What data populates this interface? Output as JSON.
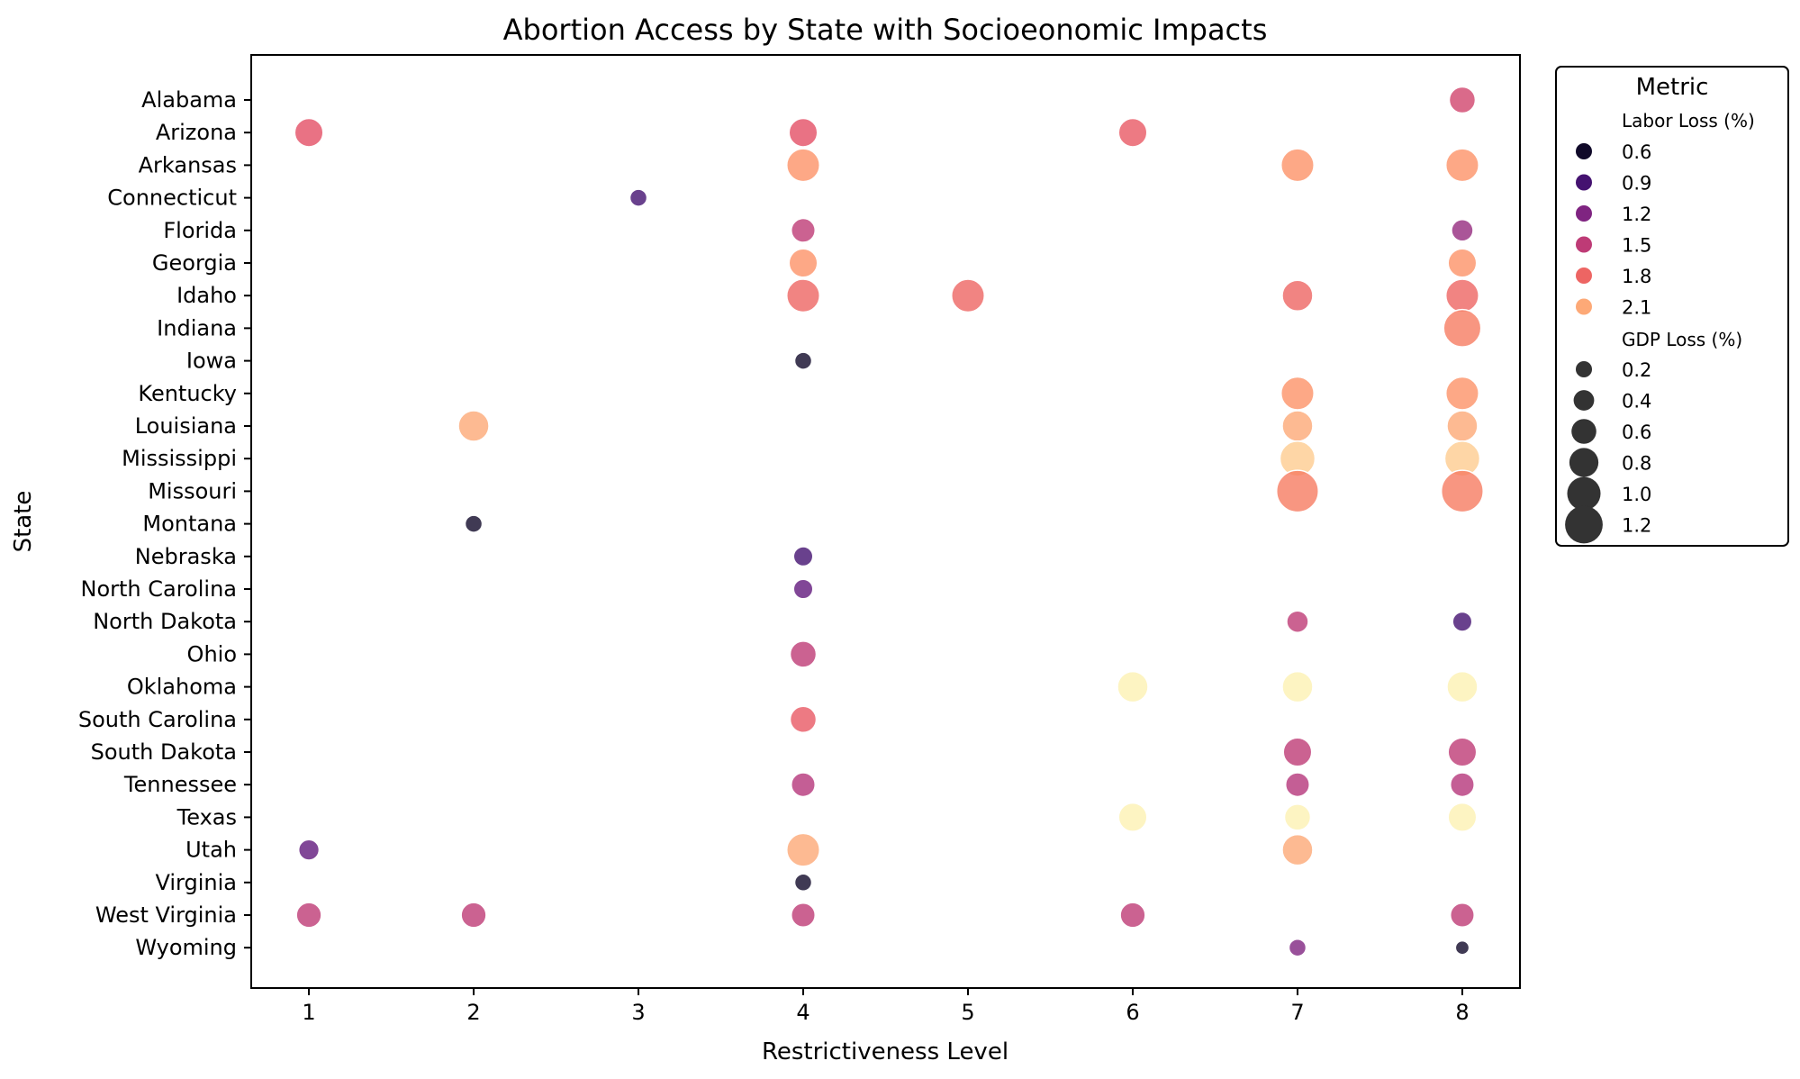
{
  "chart_data": {
    "type": "scatter",
    "title": "Abortion Access by State with Socioeonomic Impacts",
    "xlabel": "Restrictiveness Level",
    "ylabel": "State",
    "x_ticks": [
      1,
      2,
      3,
      4,
      5,
      6,
      7,
      8
    ],
    "xlim": [
      0.65,
      8.35
    ],
    "states": [
      "Alabama",
      "Arizona",
      "Arkansas",
      "Connecticut",
      "Florida",
      "Georgia",
      "Idaho",
      "Indiana",
      "Iowa",
      "Kentucky",
      "Louisiana",
      "Mississippi",
      "Missouri",
      "Montana",
      "Nebraska",
      "North Carolina",
      "North Dakota",
      "Ohio",
      "Oklahoma",
      "South Carolina",
      "South Dakota",
      "Tennessee",
      "Texas",
      "Utah",
      "Virginia",
      "West Virginia",
      "Wyoming"
    ],
    "color_metric": "Labor Loss (%)",
    "size_metric": "GDP Loss (%)",
    "points": [
      {
        "state": "Alabama",
        "x": 8,
        "labor": 1.6,
        "gdp": 0.6
      },
      {
        "state": "Arizona",
        "x": 1,
        "labor": 1.7,
        "gdp": 0.7
      },
      {
        "state": "Arizona",
        "x": 4,
        "labor": 1.7,
        "gdp": 0.7
      },
      {
        "state": "Arizona",
        "x": 6,
        "labor": 1.75,
        "gdp": 0.7
      },
      {
        "state": "Arkansas",
        "x": 4,
        "labor": 2.0,
        "gdp": 0.9
      },
      {
        "state": "Arkansas",
        "x": 7,
        "labor": 2.0,
        "gdp": 0.9
      },
      {
        "state": "Arkansas",
        "x": 8,
        "labor": 2.0,
        "gdp": 0.9
      },
      {
        "state": "Connecticut",
        "x": 3,
        "labor": 0.9,
        "gdp": 0.2
      },
      {
        "state": "Florida",
        "x": 4,
        "labor": 1.5,
        "gdp": 0.5
      },
      {
        "state": "Florida",
        "x": 8,
        "labor": 1.3,
        "gdp": 0.4
      },
      {
        "state": "Georgia",
        "x": 4,
        "labor": 2.0,
        "gdp": 0.7
      },
      {
        "state": "Georgia",
        "x": 8,
        "labor": 2.0,
        "gdp": 0.7
      },
      {
        "state": "Idaho",
        "x": 4,
        "labor": 1.8,
        "gdp": 0.9
      },
      {
        "state": "Idaho",
        "x": 5,
        "labor": 1.8,
        "gdp": 0.9
      },
      {
        "state": "Idaho",
        "x": 7,
        "labor": 1.8,
        "gdp": 0.8
      },
      {
        "state": "Idaho",
        "x": 8,
        "labor": 1.8,
        "gdp": 0.9
      },
      {
        "state": "Indiana",
        "x": 8,
        "labor": 1.9,
        "gdp": 1.1
      },
      {
        "state": "Iowa",
        "x": 4,
        "labor": 0.6,
        "gdp": 0.2
      },
      {
        "state": "Kentucky",
        "x": 7,
        "labor": 2.0,
        "gdp": 0.9
      },
      {
        "state": "Kentucky",
        "x": 8,
        "labor": 2.0,
        "gdp": 0.9
      },
      {
        "state": "Louisiana",
        "x": 2,
        "labor": 2.1,
        "gdp": 0.8
      },
      {
        "state": "Louisiana",
        "x": 7,
        "labor": 2.1,
        "gdp": 0.8
      },
      {
        "state": "Louisiana",
        "x": 8,
        "labor": 2.1,
        "gdp": 0.8
      },
      {
        "state": "Mississippi",
        "x": 7,
        "labor": 2.25,
        "gdp": 1.0
      },
      {
        "state": "Mississippi",
        "x": 8,
        "labor": 2.25,
        "gdp": 1.0
      },
      {
        "state": "Missouri",
        "x": 7,
        "labor": 1.9,
        "gdp": 1.3
      },
      {
        "state": "Missouri",
        "x": 8,
        "labor": 1.9,
        "gdp": 1.3
      },
      {
        "state": "Montana",
        "x": 2,
        "labor": 0.6,
        "gdp": 0.2
      },
      {
        "state": "Nebraska",
        "x": 4,
        "labor": 0.9,
        "gdp": 0.3
      },
      {
        "state": "North Carolina",
        "x": 4,
        "labor": 1.05,
        "gdp": 0.3
      },
      {
        "state": "North Dakota",
        "x": 7,
        "labor": 1.5,
        "gdp": 0.4
      },
      {
        "state": "North Dakota",
        "x": 8,
        "labor": 0.9,
        "gdp": 0.3
      },
      {
        "state": "Ohio",
        "x": 4,
        "labor": 1.5,
        "gdp": 0.6
      },
      {
        "state": "Oklahoma",
        "x": 6,
        "labor": 2.4,
        "gdp": 0.8
      },
      {
        "state": "Oklahoma",
        "x": 7,
        "labor": 2.4,
        "gdp": 0.8
      },
      {
        "state": "Oklahoma",
        "x": 8,
        "labor": 2.4,
        "gdp": 0.8
      },
      {
        "state": "South Carolina",
        "x": 4,
        "labor": 1.75,
        "gdp": 0.6
      },
      {
        "state": "South Dakota",
        "x": 7,
        "labor": 1.5,
        "gdp": 0.7
      },
      {
        "state": "South Dakota",
        "x": 8,
        "labor": 1.5,
        "gdp": 0.7
      },
      {
        "state": "Tennessee",
        "x": 4,
        "labor": 1.45,
        "gdp": 0.5
      },
      {
        "state": "Tennessee",
        "x": 7,
        "labor": 1.45,
        "gdp": 0.5
      },
      {
        "state": "Tennessee",
        "x": 8,
        "labor": 1.45,
        "gdp": 0.5
      },
      {
        "state": "Texas",
        "x": 6,
        "labor": 2.4,
        "gdp": 0.7
      },
      {
        "state": "Texas",
        "x": 7,
        "labor": 2.4,
        "gdp": 0.6
      },
      {
        "state": "Texas",
        "x": 8,
        "labor": 2.4,
        "gdp": 0.7
      },
      {
        "state": "Utah",
        "x": 1,
        "labor": 1.05,
        "gdp": 0.35
      },
      {
        "state": "Utah",
        "x": 4,
        "labor": 2.1,
        "gdp": 0.9
      },
      {
        "state": "Utah",
        "x": 7,
        "labor": 2.1,
        "gdp": 0.8
      },
      {
        "state": "Virginia",
        "x": 4,
        "labor": 0.6,
        "gdp": 0.2
      },
      {
        "state": "West Virginia",
        "x": 1,
        "labor": 1.5,
        "gdp": 0.55
      },
      {
        "state": "West Virginia",
        "x": 2,
        "labor": 1.5,
        "gdp": 0.55
      },
      {
        "state": "West Virginia",
        "x": 4,
        "labor": 1.5,
        "gdp": 0.5
      },
      {
        "state": "West Virginia",
        "x": 6,
        "labor": 1.5,
        "gdp": 0.55
      },
      {
        "state": "West Virginia",
        "x": 8,
        "labor": 1.5,
        "gdp": 0.5
      },
      {
        "state": "Wyoming",
        "x": 7,
        "labor": 1.2,
        "gdp": 0.2
      },
      {
        "state": "Wyoming",
        "x": 8,
        "labor": 0.6,
        "gdp": 0.05
      }
    ],
    "legend": {
      "title": "Metric",
      "placement": "outside upper-right",
      "color_title": "Labor Loss (%)",
      "color_values": [
        0.6,
        0.9,
        1.2,
        1.5,
        1.8,
        2.1
      ],
      "size_title": "GDP Loss (%)",
      "size_values": [
        0.2,
        0.4,
        0.6,
        0.8,
        1.0,
        1.2
      ]
    },
    "colormap": "magma",
    "grid": false
  }
}
